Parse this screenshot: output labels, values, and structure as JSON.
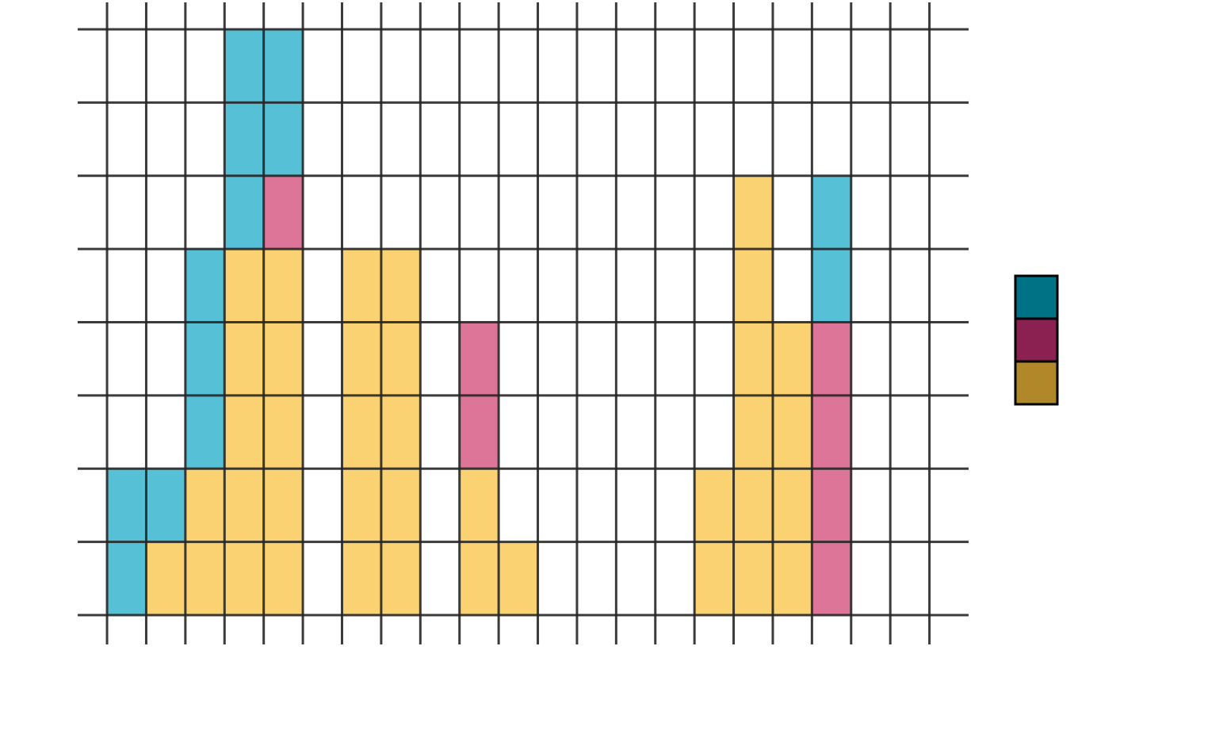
{
  "chart_data": {
    "type": "bar",
    "stacked": true,
    "bin_edges": [
      -1,
      0,
      1,
      2,
      3,
      4,
      5,
      6,
      7,
      8,
      9,
      10,
      11,
      12,
      13,
      14,
      15,
      16,
      17,
      18,
      19
    ],
    "series": [
      {
        "color": "#F9C74F",
        "values": [
          0,
          1,
          2,
          5,
          5,
          0,
          5,
          5,
          0,
          2,
          1,
          0,
          0,
          0,
          0,
          2,
          6,
          4,
          0,
          0
        ]
      },
      {
        "color": "#D4527F",
        "values": [
          0,
          0,
          0,
          0,
          1,
          0,
          0,
          0,
          0,
          2,
          0,
          0,
          0,
          0,
          0,
          0,
          0,
          0,
          4,
          0
        ]
      },
      {
        "color": "#2CB1CC",
        "values": [
          2,
          1,
          3,
          3,
          2,
          0,
          0,
          0,
          0,
          0,
          0,
          0,
          0,
          0,
          0,
          0,
          0,
          0,
          2,
          0
        ]
      }
    ],
    "xlim": [
      -1.75,
      21
    ],
    "ylim": [
      -0.4,
      8.4
    ],
    "y_gridlines": [
      0,
      1,
      2,
      3,
      4,
      5,
      6,
      7,
      8
    ],
    "x_gridlines": [
      -1,
      0,
      1,
      2,
      3,
      4,
      5,
      6,
      7,
      8,
      9,
      10,
      11,
      12,
      13,
      14,
      15,
      16,
      17,
      18,
      19,
      20
    ],
    "grid": true,
    "title": "",
    "xlabel": "",
    "ylabel": "",
    "legend": {
      "position": "right",
      "swatch_colors": [
        "#007286",
        "#8B2150",
        "#B0882A"
      ]
    }
  }
}
